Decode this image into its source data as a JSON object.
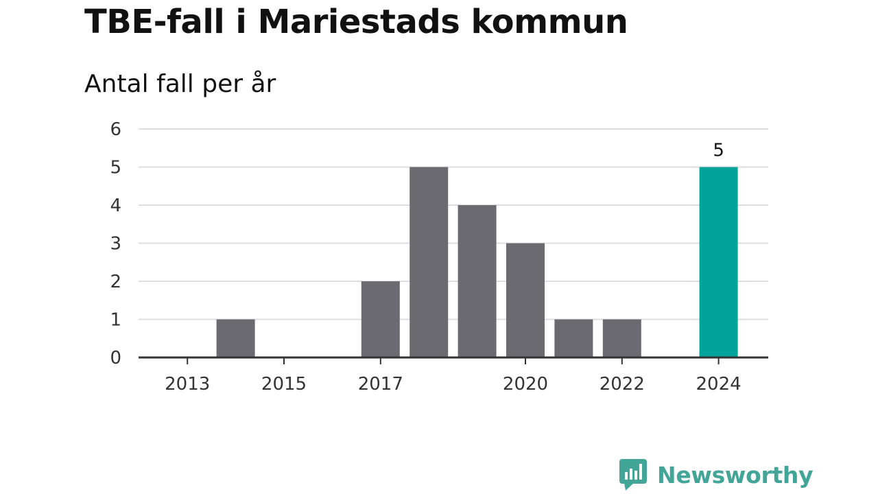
{
  "chart_data": {
    "type": "bar",
    "title": "TBE-fall i Mariestads kommun",
    "subtitle": "Antal fall per år",
    "categories": [
      "2013",
      "2014",
      "2015",
      "2016",
      "2017",
      "2018",
      "2019",
      "2020",
      "2021",
      "2022",
      "2023",
      "2024"
    ],
    "x_tick_labels": [
      "2013",
      "2015",
      "2017",
      "2020",
      "2022",
      "2024"
    ],
    "values": [
      0,
      1,
      0,
      0,
      2,
      5,
      4,
      3,
      1,
      1,
      0,
      5
    ],
    "ylim": [
      0,
      6
    ],
    "y_ticks": [
      0,
      1,
      2,
      3,
      4,
      5,
      6
    ],
    "grid": true,
    "bar_color": "#6b6a70",
    "highlight": {
      "category": "2024",
      "color": "#00a39a",
      "label": "5"
    }
  },
  "brand": {
    "name": "Newsworthy",
    "logo_icon": "bar-chart-badge-icon",
    "color": "#43a597"
  }
}
